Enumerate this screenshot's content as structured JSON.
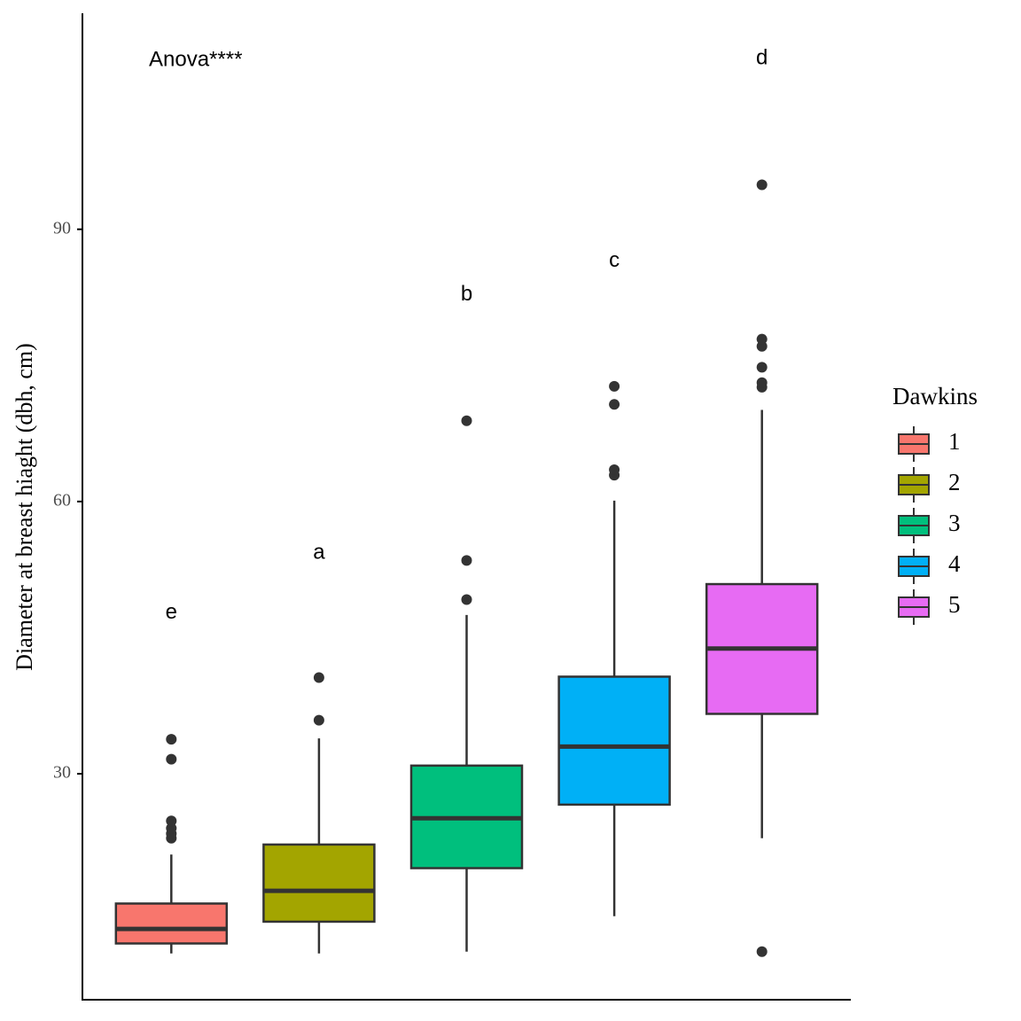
{
  "chart_data": {
    "type": "box",
    "y_label": "Diameter at breast hiaght (dbh, cm)",
    "legend_title": "Dawkins",
    "legend_position": "right",
    "categories": [
      "1",
      "2",
      "3",
      "4",
      "5"
    ],
    "colors": [
      "#F8766D",
      "#A3A500",
      "#00BF7D",
      "#00B0F6",
      "#E76BF3"
    ],
    "boxes": [
      {
        "whislo": 10.2,
        "q1": 11.3,
        "med": 12.9,
        "q3": 15.7,
        "whishi": 21.1,
        "fliers": [
          22.9,
          23.4,
          24.0,
          24.8,
          31.6,
          33.8
        ]
      },
      {
        "whislo": 10.2,
        "q1": 13.7,
        "med": 17.1,
        "q3": 22.2,
        "whishi": 33.9,
        "fliers": [
          35.9,
          40.6
        ]
      },
      {
        "whislo": 10.4,
        "q1": 19.6,
        "med": 25.1,
        "q3": 30.9,
        "whishi": 47.5,
        "fliers": [
          49.2,
          53.5,
          68.9
        ]
      },
      {
        "whislo": 14.3,
        "q1": 26.6,
        "med": 33.0,
        "q3": 40.7,
        "whishi": 60.1,
        "fliers": [
          62.9,
          63.5,
          70.7,
          72.7
        ]
      },
      {
        "whislo": 22.9,
        "q1": 36.6,
        "med": 43.8,
        "q3": 50.9,
        "whishi": 70.1,
        "fliers": [
          10.4,
          72.6,
          73.1,
          74.8,
          77.1,
          77.9,
          94.9
        ]
      }
    ],
    "group_letters": [
      {
        "text": "e",
        "y": 47.7
      },
      {
        "text": "a",
        "y": 54.3
      },
      {
        "text": "b",
        "y": 82.8
      },
      {
        "text": "c",
        "y": 86.5
      },
      {
        "text": "d",
        "y": 108.8
      }
    ],
    "annotation": "Anova****",
    "ylim": [
      5.1,
      113.8
    ],
    "yticks": [
      30,
      60,
      90
    ]
  }
}
